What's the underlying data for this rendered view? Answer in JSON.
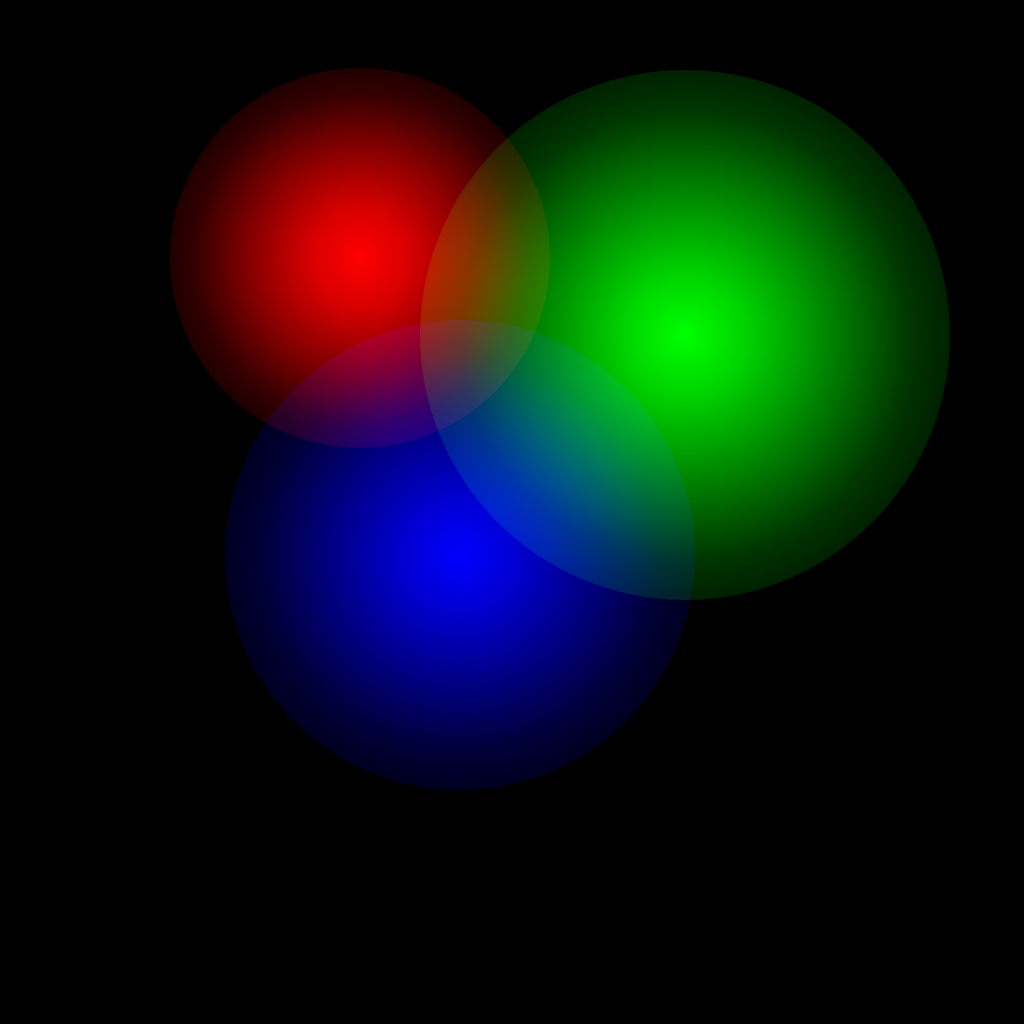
{
  "background_color": "#000000",
  "glows": {
    "red": {
      "color": "#ff0000"
    },
    "green": {
      "color": "#00ff00"
    },
    "blue": {
      "color": "#0000ff"
    }
  }
}
